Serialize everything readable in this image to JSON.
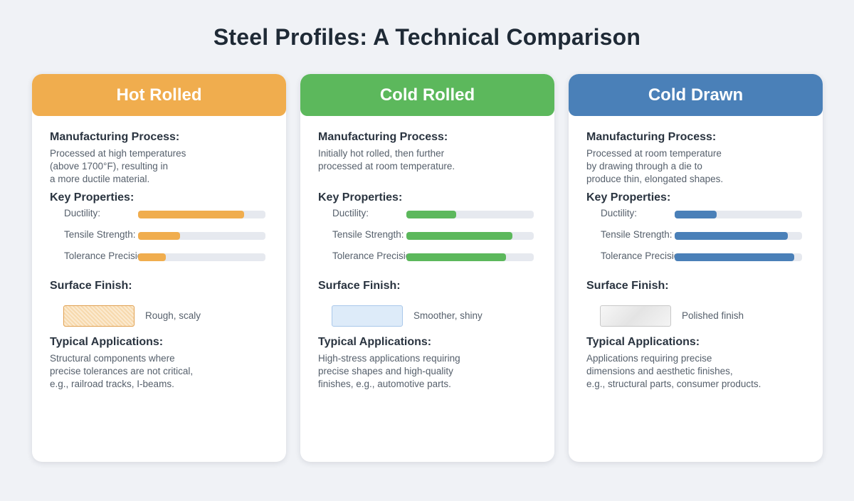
{
  "title": "Steel Profiles: A Technical Comparison",
  "cards": [
    {
      "name": "Hot Rolled",
      "color": "#f0ad4e",
      "process_heading": "Manufacturing Process:",
      "process_text": "Processed at high temperatures\n(above 1700°F), resulting in\na more ductile material.",
      "properties_heading": "Key Properties:",
      "properties": [
        {
          "label": "Ductility:",
          "level": 0.83
        },
        {
          "label": "Tensile Strength:",
          "level": 0.33
        },
        {
          "label": "Tolerance Precision:",
          "level": 0.22
        }
      ],
      "finish_heading": "Surface Finish:",
      "finish_label": "Rough, scaly",
      "applications_heading": "Typical Applications:",
      "applications_text": "Structural components where\nprecise tolerances are not critical,\ne.g., railroad tracks, I-beams."
    },
    {
      "name": "Cold Rolled",
      "color": "#5cb85c",
      "process_heading": "Manufacturing Process:",
      "process_text": "Initially hot rolled, then further\nprocessed at room temperature.",
      "properties_heading": "Key Properties:",
      "properties": [
        {
          "label": "Ductility:",
          "level": 0.39
        },
        {
          "label": "Tensile Strength:",
          "level": 0.83
        },
        {
          "label": "Tolerance Precision:",
          "level": 0.78
        }
      ],
      "finish_heading": "Surface Finish:",
      "finish_label": "Smoother, shiny",
      "applications_heading": "Typical Applications:",
      "applications_text": "High-stress applications requiring\nprecise shapes and high-quality\nfinishes, e.g., automotive parts."
    },
    {
      "name": "Cold Drawn",
      "color": "#4a80b8",
      "process_heading": "Manufacturing Process:",
      "process_text": "Processed at room temperature\nby drawing through a die to\nproduce thin, elongated shapes.",
      "properties_heading": "Key Properties:",
      "properties": [
        {
          "label": "Ductility:",
          "level": 0.33
        },
        {
          "label": "Tensile Strength:",
          "level": 0.89
        },
        {
          "label": "Tolerance Precision:",
          "level": 0.94
        }
      ],
      "finish_heading": "Surface Finish:",
      "finish_label": "Polished finish",
      "applications_heading": "Typical Applications:",
      "applications_text": "Applications requiring precise\ndimensions and aesthetic finishes,\ne.g., structural parts, consumer products."
    }
  ]
}
